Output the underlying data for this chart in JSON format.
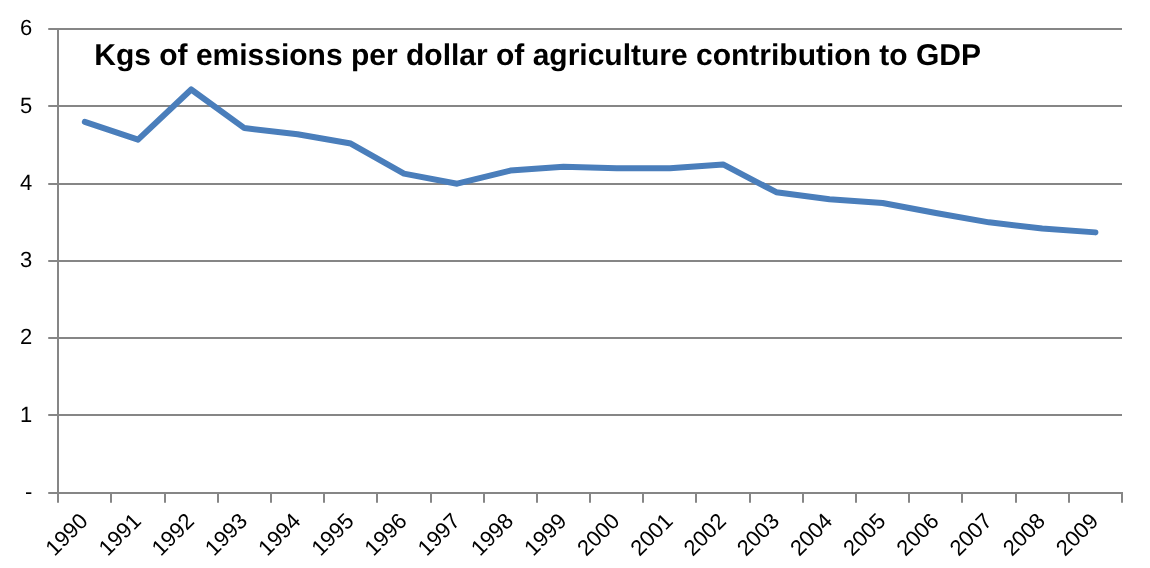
{
  "chart_data": {
    "type": "line",
    "title": "Kgs of emissions per dollar of agriculture contribution to GDP",
    "categories": [
      "1990",
      "1991",
      "1992",
      "1993",
      "1994",
      "1995",
      "1996",
      "1997",
      "1998",
      "1999",
      "2000",
      "2001",
      "2002",
      "2003",
      "2004",
      "2005",
      "2006",
      "2007",
      "2008",
      "2009"
    ],
    "series": [
      {
        "color": "#4a7ebb",
        "values": [
          4.8,
          4.57,
          5.22,
          4.72,
          4.64,
          4.52,
          4.13,
          4.0,
          4.17,
          4.22,
          4.2,
          4.2,
          4.25,
          3.89,
          3.8,
          3.75,
          3.62,
          3.5,
          3.42,
          3.37
        ]
      }
    ],
    "ylim": [
      0,
      6
    ],
    "yticks": [
      {
        "value": 0,
        "label": "-"
      },
      1,
      2,
      3,
      4,
      5,
      6
    ],
    "grid": "y",
    "legend": false,
    "marker": "none",
    "line_style": "solid"
  }
}
